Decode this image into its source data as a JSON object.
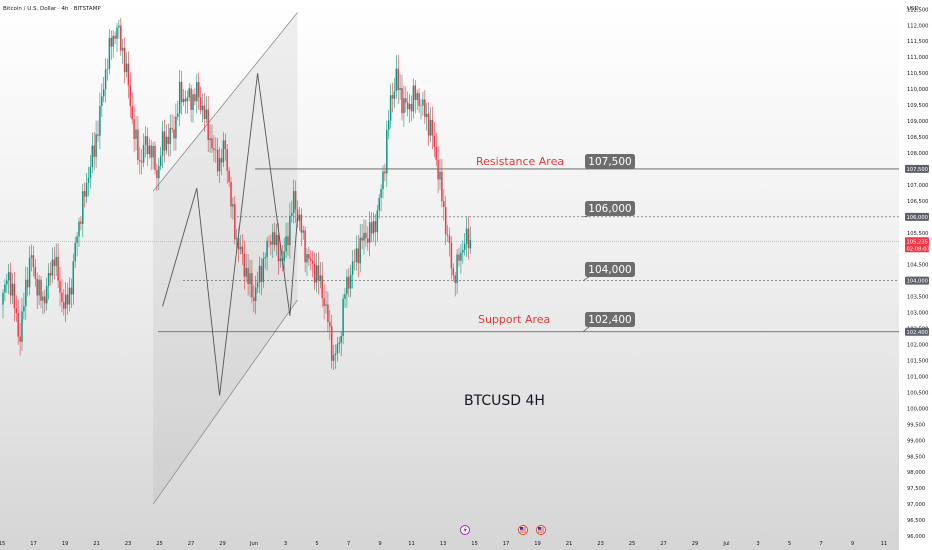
{
  "header": {
    "symbol_title": "Bitcoin / U.S. Dollar · 4h · BITSTAMP",
    "currency": "USD"
  },
  "watermark": "BTCUSD 4H",
  "annotations": {
    "resistance_label": "Resistance Area",
    "support_label": "Support Area"
  },
  "level_callouts": [
    "107,500",
    "106,000",
    "104,000",
    "102,400"
  ],
  "price_tags": {
    "last_price": "105,235",
    "countdown": "02:08:07",
    "levels": [
      "107,500",
      "106,000",
      "104,000",
      "102,400"
    ]
  },
  "event_icons": [
    {
      "icon": "flash-icon",
      "color": "#9c27b0"
    },
    {
      "icon": "us-flag-icon",
      "color": "#e53935"
    },
    {
      "icon": "us-flag-icon",
      "color": "#e53935"
    }
  ],
  "colors": {
    "up": "#089981",
    "down": "#f23645",
    "resistance_text": "#e53935",
    "callout_bg": "#6d6d6d",
    "last_price_tag": "#f23645",
    "level_tag": "#5d606b"
  },
  "chart_data": {
    "type": "candlestick",
    "title": "Bitcoin / U.S. Dollar · 4h · BITSTAMP",
    "y_axis": {
      "unit": "USD",
      "range": [
        95700,
        112800
      ],
      "ticks": [
        "112,500",
        "112,000",
        "111,500",
        "111,000",
        "110,500",
        "110,000",
        "109,500",
        "109,000",
        "108,500",
        "108,000",
        "107,500",
        "107,000",
        "106,500",
        "106,000",
        "105,500",
        "105,000",
        "104,500",
        "104,000",
        "103,500",
        "103,000",
        "102,500",
        "102,000",
        "101,500",
        "101,000",
        "100,500",
        "100,000",
        "99,500",
        "99,000",
        "98,500",
        "98,000",
        "97,500",
        "97,000",
        "96,500",
        "96,000"
      ]
    },
    "x_axis": {
      "ticks": [
        "15",
        "17",
        "19",
        "21",
        "23",
        "25",
        "27",
        "29",
        "Jun",
        "3",
        "5",
        "7",
        "9",
        "11",
        "13",
        "15",
        "17",
        "19",
        "21",
        "23",
        "25",
        "27",
        "29",
        "Jul",
        "3",
        "5",
        "7",
        "9",
        "11"
      ]
    },
    "path_points": [
      [
        0,
        103400
      ],
      [
        3,
        104200
      ],
      [
        6,
        103300
      ],
      [
        9,
        102200
      ],
      [
        12,
        103800
      ],
      [
        15,
        104700
      ],
      [
        18,
        103900
      ],
      [
        21,
        103400
      ],
      [
        24,
        103900
      ],
      [
        27,
        104800
      ],
      [
        30,
        103700
      ],
      [
        33,
        103200
      ],
      [
        36,
        103800
      ],
      [
        39,
        105500
      ],
      [
        42,
        106500
      ],
      [
        45,
        107400
      ],
      [
        48,
        108000
      ],
      [
        51,
        109200
      ],
      [
        54,
        110700
      ],
      [
        57,
        111500
      ],
      [
        60,
        111800
      ],
      [
        63,
        111200
      ],
      [
        66,
        110200
      ],
      [
        69,
        108600
      ],
      [
        72,
        107600
      ],
      [
        75,
        108300
      ],
      [
        78,
        108200
      ],
      [
        81,
        107300
      ],
      [
        84,
        108200
      ],
      [
        87,
        108500
      ],
      [
        90,
        108800
      ],
      [
        93,
        109800
      ],
      [
        96,
        109600
      ],
      [
        99,
        109700
      ],
      [
        102,
        110000
      ],
      [
        105,
        109400
      ],
      [
        108,
        108600
      ],
      [
        111,
        108000
      ],
      [
        114,
        107800
      ],
      [
        117,
        108200
      ],
      [
        120,
        106300
      ],
      [
        123,
        105300
      ],
      [
        126,
        104800
      ],
      [
        129,
        104000
      ],
      [
        132,
        103400
      ],
      [
        135,
        104200
      ],
      [
        138,
        104900
      ],
      [
        141,
        105400
      ],
      [
        144,
        105000
      ],
      [
        147,
        104600
      ],
      [
        150,
        105600
      ],
      [
        153,
        106500
      ],
      [
        156,
        105800
      ],
      [
        159,
        105000
      ],
      [
        162,
        104600
      ],
      [
        165,
        104200
      ],
      [
        168,
        103600
      ],
      [
        171,
        102800
      ],
      [
        174,
        101600
      ],
      [
        177,
        102000
      ],
      [
        180,
        103600
      ],
      [
        183,
        104300
      ],
      [
        186,
        104900
      ],
      [
        189,
        105200
      ],
      [
        192,
        105400
      ],
      [
        195,
        105700
      ],
      [
        198,
        106500
      ],
      [
        201,
        107700
      ],
      [
        204,
        109600
      ],
      [
        207,
        110400
      ],
      [
        210,
        109700
      ],
      [
        213,
        109300
      ],
      [
        216,
        109700
      ],
      [
        219,
        109800
      ],
      [
        222,
        109300
      ],
      [
        225,
        108700
      ],
      [
        228,
        107800
      ],
      [
        231,
        106700
      ],
      [
        234,
        105400
      ],
      [
        237,
        104000
      ],
      [
        240,
        104600
      ],
      [
        243,
        105400
      ],
      [
        246,
        105200
      ]
    ],
    "levels": [
      {
        "label": "Resistance Area",
        "value": 107500,
        "style": "solid"
      },
      {
        "value": 106000,
        "style": "dashed"
      },
      {
        "value": 104000,
        "style": "dashed"
      },
      {
        "label": "Support Area",
        "value": 102400,
        "style": "solid"
      }
    ],
    "channel": {
      "upper": [
        [
          79,
          106800
        ],
        [
          155,
          112400
        ]
      ],
      "lower": [
        [
          79,
          97000
        ],
        [
          155,
          103400
        ]
      ]
    },
    "zigzag_pattern": [
      [
        84,
        103200
      ],
      [
        102,
        106900
      ],
      [
        114,
        100400
      ],
      [
        134,
        110500
      ],
      [
        151,
        102900
      ],
      [
        155,
        106000
      ]
    ],
    "last_price": 105235
  }
}
